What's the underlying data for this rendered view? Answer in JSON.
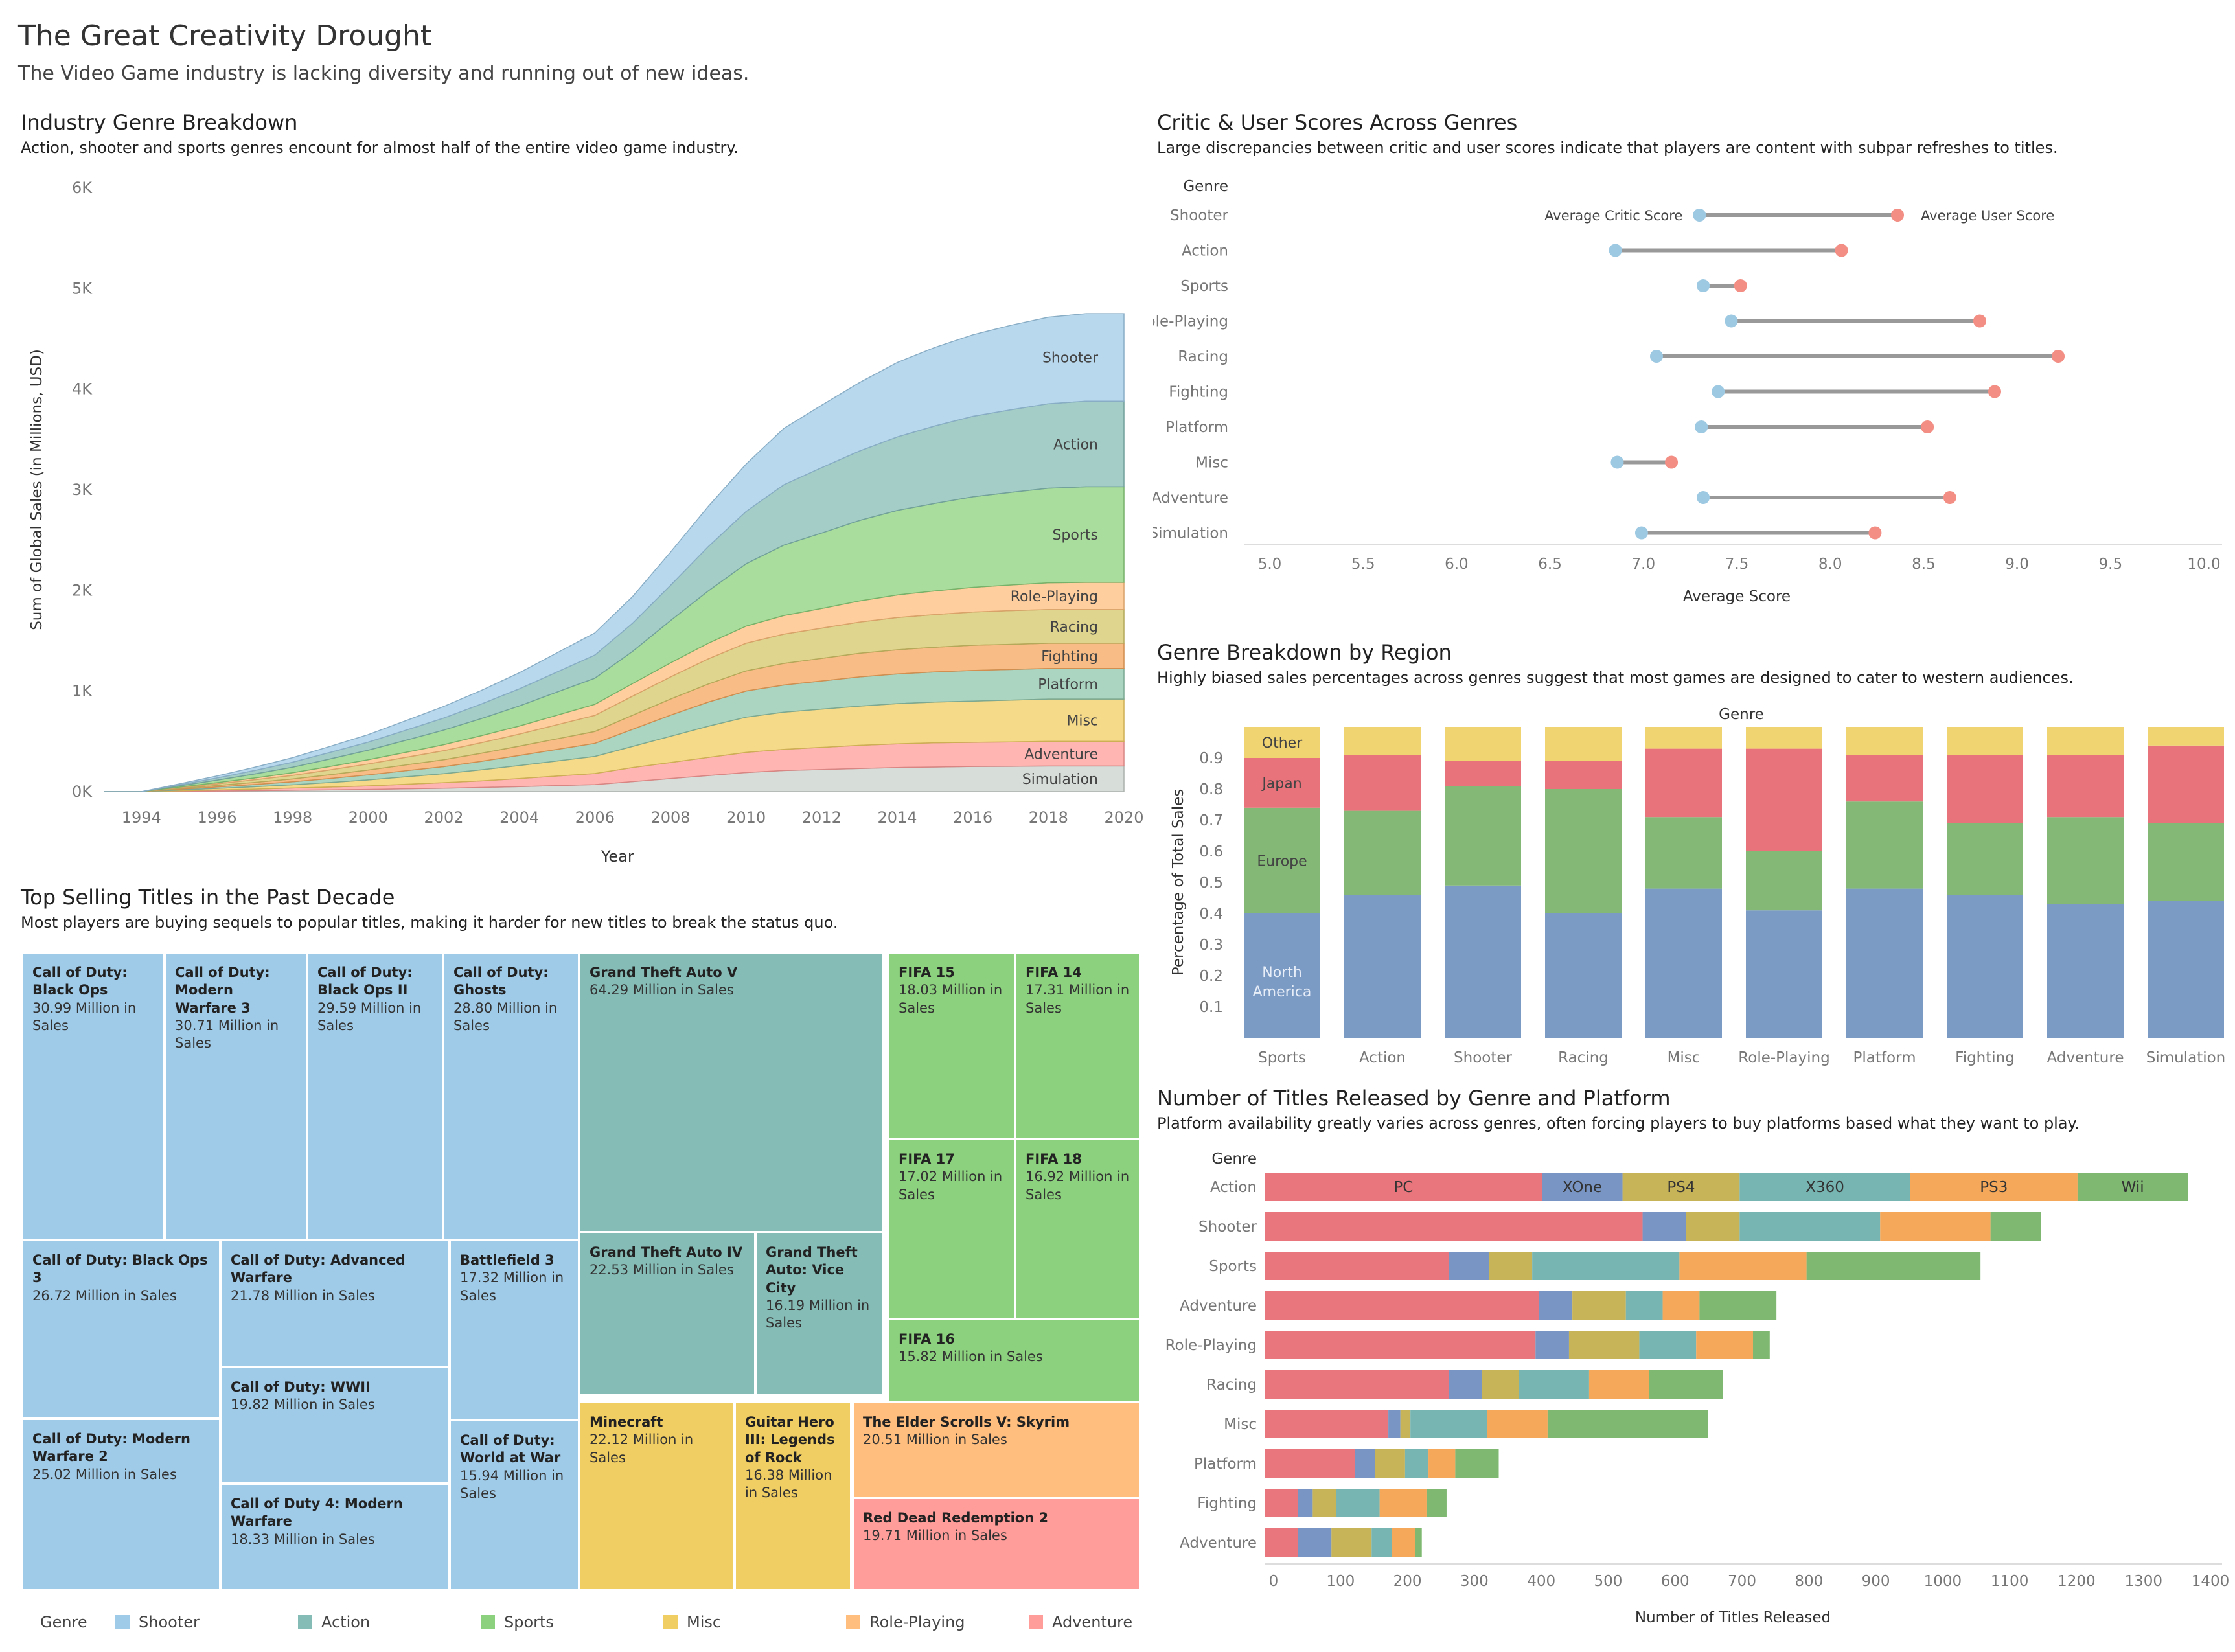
{
  "header": {
    "title": "The Great Creativity Drought",
    "subtitle": "The Video Game industry is lacking diversity and running out of new ideas."
  },
  "colors": {
    "Shooter": "#a0cbe8",
    "Action": "#86bcb6",
    "Sports": "#8cd17d",
    "Misc": "#f1ce63",
    "Role-Playing": "#ffbe7d",
    "Adventure": "#ff9d9a",
    "Racing": "#d4c76a",
    "Fighting": "#f6a75d",
    "Platform": "#8fc6ac",
    "Simulation": "#c9d1cc",
    "critic": "#9ec9e2",
    "user": "#f28e84",
    "na": "#7b9ac4",
    "eu": "#84b877",
    "jp": "#e8737a",
    "other": "#efd471",
    "PC": "#e8767c",
    "XOne": "#7895c3",
    "PS4": "#c7b358",
    "X360": "#76b5b2",
    "PS3": "#f5a85a",
    "Wii": "#7fb871"
  },
  "area_chart": {
    "heading": "Industry Genre Breakdown",
    "description": "Action, shooter and sports genres encount for almost half of the entire video game industry.",
    "chart_data": {
      "type": "area",
      "ylabel": "Sum of Global Sales (in Millions, USD)",
      "xlabel": "Year",
      "xlim": [
        1993,
        2020
      ],
      "ylim": [
        0,
        6000
      ],
      "y_ticks": [
        "0K",
        "1K",
        "2K",
        "3K",
        "4K",
        "5K",
        "6K"
      ],
      "x_ticks": [
        "1994",
        "1996",
        "1998",
        "2000",
        "2002",
        "2004",
        "2006",
        "2008",
        "2010",
        "2012",
        "2014",
        "2016",
        "2018",
        "2020"
      ],
      "x": [
        1993,
        1994,
        1995,
        1996,
        1997,
        1998,
        1999,
        2000,
        2001,
        2002,
        2003,
        2004,
        2005,
        2006,
        2007,
        2008,
        2009,
        2010,
        2011,
        2012,
        2013,
        2014,
        2015,
        2016,
        2017,
        2018,
        2019,
        2020
      ],
      "series": [
        {
          "name": "Simulation",
          "values": [
            0,
            0,
            3,
            6,
            10,
            14,
            18,
            22,
            28,
            34,
            42,
            50,
            60,
            70,
            100,
            130,
            160,
            190,
            210,
            220,
            230,
            240,
            245,
            250,
            252,
            255,
            255,
            255
          ]
        },
        {
          "name": "Adventure",
          "values": [
            0,
            0,
            5,
            10,
            15,
            22,
            28,
            35,
            45,
            55,
            65,
            80,
            95,
            110,
            140,
            160,
            180,
            200,
            210,
            220,
            230,
            235,
            240,
            240,
            242,
            245,
            245,
            245
          ]
        },
        {
          "name": "Misc",
          "values": [
            0,
            0,
            8,
            16,
            24,
            32,
            45,
            60,
            75,
            90,
            110,
            130,
            150,
            170,
            210,
            260,
            310,
            350,
            370,
            380,
            390,
            400,
            405,
            410,
            415,
            420,
            420,
            420
          ]
        },
        {
          "name": "Platform",
          "values": [
            0,
            0,
            8,
            15,
            22,
            30,
            40,
            50,
            60,
            70,
            85,
            100,
            115,
            130,
            170,
            210,
            240,
            260,
            270,
            280,
            290,
            295,
            300,
            305,
            305,
            305,
            305,
            305
          ]
        },
        {
          "name": "Fighting",
          "values": [
            0,
            0,
            7,
            14,
            21,
            28,
            38,
            48,
            58,
            68,
            80,
            92,
            105,
            118,
            140,
            160,
            180,
            200,
            215,
            225,
            235,
            240,
            245,
            250,
            250,
            250,
            250,
            250
          ]
        },
        {
          "name": "Racing",
          "values": [
            0,
            0,
            8,
            16,
            26,
            36,
            48,
            60,
            75,
            90,
            105,
            120,
            140,
            160,
            190,
            220,
            250,
            275,
            290,
            300,
            310,
            320,
            325,
            330,
            335,
            335,
            335,
            335
          ]
        },
        {
          "name": "Role-Playing",
          "values": [
            0,
            0,
            6,
            12,
            18,
            26,
            34,
            42,
            50,
            60,
            70,
            80,
            95,
            110,
            125,
            140,
            155,
            170,
            185,
            195,
            210,
            225,
            235,
            245,
            255,
            265,
            270,
            270
          ]
        },
        {
          "name": "Sports",
          "values": [
            0,
            0,
            12,
            25,
            40,
            55,
            75,
            95,
            120,
            145,
            170,
            200,
            230,
            260,
            320,
            420,
            520,
            620,
            700,
            750,
            800,
            840,
            870,
            900,
            920,
            940,
            950,
            950
          ]
        },
        {
          "name": "Action",
          "values": [
            0,
            0,
            10,
            22,
            35,
            50,
            65,
            80,
            100,
            120,
            145,
            170,
            200,
            230,
            280,
            350,
            440,
            520,
            600,
            650,
            690,
            730,
            770,
            800,
            820,
            840,
            850,
            850
          ]
        },
        {
          "name": "Shooter",
          "values": [
            0,
            0,
            10,
            20,
            32,
            45,
            60,
            75,
            95,
            115,
            135,
            160,
            190,
            220,
            265,
            330,
            400,
            470,
            560,
            620,
            680,
            740,
            780,
            810,
            840,
            860,
            870,
            870
          ]
        }
      ],
      "labels": [
        "Shooter",
        "Action",
        "Sports",
        "Role-Playing",
        "Racing",
        "Fighting",
        "Platform",
        "Misc",
        "Adventure",
        "Simulation"
      ]
    }
  },
  "dumbbell": {
    "heading": "Critic & User Scores Across Genres",
    "description": "Large discrepancies between critic and user scores indicate that players are content with subpar refreshes to titles.",
    "chart_data": {
      "type": "scatter",
      "genre_header": "Genre",
      "xlabel": "Average Score",
      "xlim": [
        5.0,
        10.0
      ],
      "x_ticks": [
        "5.0",
        "5.5",
        "6.0",
        "6.5",
        "7.0",
        "7.5",
        "8.0",
        "8.5",
        "9.0",
        "9.5",
        "10.0"
      ],
      "critic_label": "Average Critic Score",
      "user_label": "Average User Score",
      "categories": [
        "Shooter",
        "Action",
        "Sports",
        "Role-Playing",
        "Racing",
        "Fighting",
        "Platform",
        "Misc",
        "Adventure",
        "Simulation"
      ],
      "critic": [
        7.3,
        6.85,
        7.32,
        7.47,
        7.07,
        7.4,
        7.31,
        6.86,
        7.32,
        6.99
      ],
      "user": [
        8.36,
        8.06,
        7.52,
        8.8,
        9.22,
        8.88,
        8.52,
        7.15,
        8.64,
        8.24
      ]
    }
  },
  "stacked": {
    "heading": "Genre Breakdown by Region",
    "description": "Highly biased sales percentages across genres suggest that most games are designed to cater to western audiences.",
    "chart_data": {
      "type": "bar",
      "genre_header": "Genre",
      "ylabel": "Percentage of Total Sales",
      "ylim": [
        0,
        1
      ],
      "y_ticks": [
        "0.1",
        "0.2",
        "0.3",
        "0.4",
        "0.5",
        "0.6",
        "0.7",
        "0.8",
        "0.9"
      ],
      "categories": [
        "Sports",
        "Action",
        "Shooter",
        "Racing",
        "Misc",
        "Role-Playing",
        "Platform",
        "Fighting",
        "Adventure",
        "Simulation"
      ],
      "series": [
        {
          "name": "North America",
          "values": [
            0.4,
            0.46,
            0.49,
            0.4,
            0.48,
            0.41,
            0.48,
            0.46,
            0.43,
            0.44
          ]
        },
        {
          "name": "Europe",
          "values": [
            0.34,
            0.27,
            0.32,
            0.4,
            0.23,
            0.19,
            0.28,
            0.23,
            0.28,
            0.25
          ]
        },
        {
          "name": "Japan",
          "values": [
            0.16,
            0.18,
            0.08,
            0.09,
            0.22,
            0.33,
            0.15,
            0.22,
            0.2,
            0.25
          ]
        },
        {
          "name": "Other",
          "values": [
            0.1,
            0.09,
            0.11,
            0.11,
            0.07,
            0.07,
            0.09,
            0.09,
            0.09,
            0.06
          ]
        }
      ],
      "segment_labels": [
        "North America",
        "Europe",
        "Japan",
        "Other"
      ]
    }
  },
  "hbar": {
    "heading": "Number of Titles Released by Genre and Platform",
    "description": "Platform availability greatly varies across genres, often forcing players to buy platforms based what they want to play.",
    "chart_data": {
      "type": "bar",
      "orientation": "horizontal",
      "genre_header": "Genre",
      "xlabel": "Number of Titles Released",
      "xlim": [
        0,
        1400
      ],
      "x_ticks": [
        "0",
        "100",
        "200",
        "300",
        "400",
        "500",
        "600",
        "700",
        "800",
        "900",
        "1000",
        "1100",
        "1200",
        "1300",
        "1400"
      ],
      "categories": [
        "Action",
        "Shooter",
        "Sports",
        "Adventure",
        "Role-Playing",
        "Racing",
        "Misc",
        "Platform",
        "Fighting",
        "Adventure"
      ],
      "series": [
        {
          "name": "PC",
          "values": [
            415,
            565,
            275,
            410,
            405,
            275,
            185,
            135,
            50,
            50
          ]
        },
        {
          "name": "XOne",
          "values": [
            120,
            65,
            60,
            50,
            50,
            50,
            18,
            30,
            22,
            50
          ]
        },
        {
          "name": "PS4",
          "values": [
            175,
            80,
            65,
            80,
            105,
            55,
            15,
            45,
            35,
            60
          ]
        },
        {
          "name": "X360",
          "values": [
            255,
            210,
            220,
            55,
            85,
            105,
            115,
            35,
            65,
            30
          ]
        },
        {
          "name": "PS3",
          "values": [
            250,
            165,
            190,
            55,
            85,
            90,
            90,
            40,
            70,
            35
          ]
        },
        {
          "name": "Wii",
          "values": [
            165,
            75,
            260,
            115,
            25,
            110,
            240,
            65,
            30,
            10
          ]
        }
      ],
      "segment_labels": [
        "PC",
        "XOne",
        "PS4",
        "X360",
        "PS3",
        "Wii"
      ]
    }
  },
  "treemap": {
    "heading": "Top Selling Titles in the Past Decade",
    "description": "Most players are buying sequels to popular titles, making it harder for new titles to break the status quo.",
    "tiles": [
      {
        "name": "Call of Duty: Black Ops",
        "value": "30.99 Million in Sales",
        "genre": "Shooter"
      },
      {
        "name": "Call of Duty: Modern Warfare 3",
        "value": "30.71 Million in Sales",
        "genre": "Shooter"
      },
      {
        "name": "Call of Duty: Black Ops II",
        "value": "29.59 Million in Sales",
        "genre": "Shooter"
      },
      {
        "name": "Call of Duty: Ghosts",
        "value": "28.80 Million in Sales",
        "genre": "Shooter"
      },
      {
        "name": "Call of Duty: Black Ops 3",
        "value": "26.72 Million in Sales",
        "genre": "Shooter"
      },
      {
        "name": "Call of Duty: Advanced Warfare",
        "value": "21.78 Million in Sales",
        "genre": "Shooter"
      },
      {
        "name": "Battlefield 3",
        "value": "17.32 Million in Sales",
        "genre": "Shooter"
      },
      {
        "name": "Call of Duty: WWII",
        "value": "19.82 Million in Sales",
        "genre": "Shooter"
      },
      {
        "name": "Call of Duty: Modern Warfare 2",
        "value": "25.02 Million in Sales",
        "genre": "Shooter"
      },
      {
        "name": "Call of Duty: World at War",
        "value": "15.94 Million in Sales",
        "genre": "Shooter"
      },
      {
        "name": "Call of Duty 4: Modern Warfare",
        "value": "18.33 Million in Sales",
        "genre": "Shooter"
      },
      {
        "name": "Grand Theft Auto V",
        "value": "64.29 Million in Sales",
        "genre": "Action"
      },
      {
        "name": "Grand Theft Auto IV",
        "value": "22.53 Million in Sales",
        "genre": "Action"
      },
      {
        "name": "Grand Theft Auto: Vice City",
        "value": "16.19 Million in Sales",
        "genre": "Action"
      },
      {
        "name": "FIFA 15",
        "value": "18.03 Million in Sales",
        "genre": "Sports"
      },
      {
        "name": "FIFA 14",
        "value": "17.31 Million in Sales",
        "genre": "Sports"
      },
      {
        "name": "FIFA 17",
        "value": "17.02 Million in Sales",
        "genre": "Sports"
      },
      {
        "name": "FIFA 18",
        "value": "16.92 Million in Sales",
        "genre": "Sports"
      },
      {
        "name": "FIFA 16",
        "value": "15.82 Million in Sales",
        "genre": "Sports"
      },
      {
        "name": "Minecraft",
        "value": "22.12 Million in Sales",
        "genre": "Misc"
      },
      {
        "name": "Guitar Hero III: Legends of Rock",
        "value": "16.38 Million in Sales",
        "genre": "Misc"
      },
      {
        "name": "The Elder Scrolls V: Skyrim",
        "value": "20.51 Million in Sales",
        "genre": "Role-Playing"
      },
      {
        "name": "Red Dead Redemption 2",
        "value": "19.71 Million in Sales",
        "genre": "Adventure"
      }
    ]
  },
  "legend": {
    "title": "Genre",
    "items": [
      "Shooter",
      "Action",
      "Sports",
      "Misc",
      "Role-Playing",
      "Adventure"
    ]
  }
}
